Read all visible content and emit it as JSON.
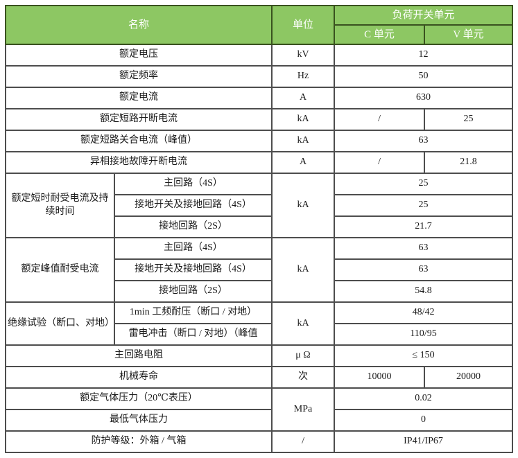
{
  "colors": {
    "header_bg": "#8dc763",
    "header_text": "#ffffff",
    "header_border": "#39511f",
    "grid_border": "#4d4d4d"
  },
  "table": {
    "header": {
      "name": "名称",
      "unit": "单位",
      "group": "负荷开关单元",
      "c": "C 单元",
      "v": "V 单元"
    },
    "rows": {
      "rated_voltage": {
        "label": "额定电压",
        "unit": "kV",
        "value": "12"
      },
      "rated_frequency": {
        "label": "额定频率",
        "unit": "Hz",
        "value": "50"
      },
      "rated_current": {
        "label": "额定电流",
        "unit": "A",
        "value": "630"
      },
      "sc_breaking": {
        "label": "额定短路开断电流",
        "unit": "kA",
        "c": "/",
        "v": "25"
      },
      "sc_making": {
        "label": "额定短路关合电流（峰值）",
        "unit": "kA",
        "value": "63"
      },
      "earth_fault": {
        "label": "异相接地故障开断电流",
        "unit": "A",
        "c": "/",
        "v": "21.8"
      },
      "short_time_withstand": {
        "label": "额定短时耐受电流及持续时间",
        "unit": "kA",
        "sub1_label": "主回路（4S）",
        "sub1_value": "25",
        "sub2_label": "接地开关及接地回路（4S）",
        "sub2_value": "25",
        "sub3_label": "接地回路（2S）",
        "sub3_value": "21.7"
      },
      "peak_withstand": {
        "label": "额定峰值耐受电流",
        "unit": "kA",
        "sub1_label": "主回路（4S）",
        "sub1_value": "63",
        "sub2_label": "接地开关及接地回路（4S）",
        "sub2_value": "63",
        "sub3_label": "接地回路（2S）",
        "sub3_value": "54.8"
      },
      "insulation_test": {
        "label": "绝缘试验（断口、对地）",
        "unit": "kA",
        "sub1_label": "1min 工频耐压（断口 / 对地）",
        "sub1_value": "48/42",
        "sub2_label": "雷电冲击（断口 / 对地）（峰值",
        "sub2_value": "110/95"
      },
      "main_circuit_resistance": {
        "label": "主回路电阻",
        "unit": "μ Ω",
        "value": "≤ 150"
      },
      "mechanical_life": {
        "label": "机械寿命",
        "unit": "次",
        "c": "10000",
        "v": "20000"
      },
      "gas_pressure": {
        "unit": "MPa",
        "rated_label": "额定气体压力（20℃表压）",
        "rated_value": "0.02",
        "min_label": "最低气体压力",
        "min_value": "0"
      },
      "protection_degree": {
        "label": "防护等级：外箱 / 气箱",
        "unit": "/",
        "value": "IP41/IP67"
      }
    }
  }
}
